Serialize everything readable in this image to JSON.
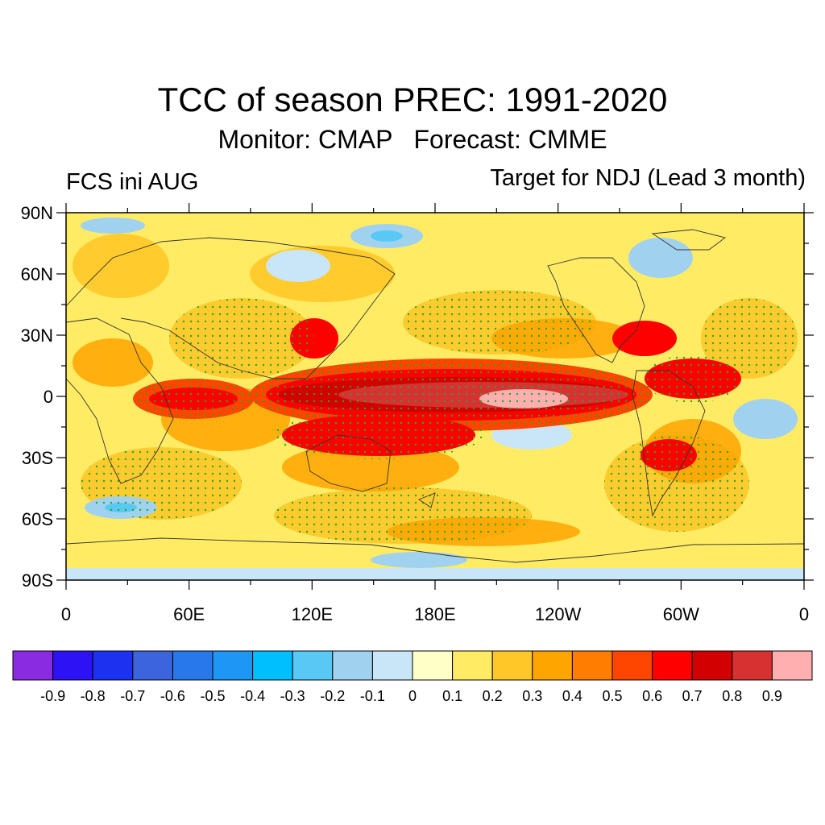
{
  "header": {
    "title": "TCC of season PREC: 1991-2020",
    "subtitle": "Monitor: CMAP   Forecast: CMME",
    "left_label": "FCS ini AUG",
    "right_label": "Target for NDJ (Lead 3 month)"
  },
  "map": {
    "projection": "cylindrical equidistant, 0-360E",
    "lat_range": [
      -90,
      90
    ],
    "lon_range": [
      0,
      360
    ],
    "lat_ticks": [
      {
        "lat": 90,
        "label": "90N"
      },
      {
        "lat": 60,
        "label": "60N"
      },
      {
        "lat": 30,
        "label": "30N"
      },
      {
        "lat": 0,
        "label": "0"
      },
      {
        "lat": -30,
        "label": "30S"
      },
      {
        "lat": -60,
        "label": "60S"
      },
      {
        "lat": -90,
        "label": "90S"
      }
    ],
    "lon_ticks": [
      {
        "lon": 0,
        "label": "0"
      },
      {
        "lon": 60,
        "label": "60E"
      },
      {
        "lon": 120,
        "label": "120E"
      },
      {
        "lon": 180,
        "label": "180E"
      },
      {
        "lon": 240,
        "label": "120W"
      },
      {
        "lon": 300,
        "label": "60W"
      },
      {
        "lon": 360,
        "label": "0"
      }
    ],
    "stippling_color": "#22aa22"
  },
  "colorbar": {
    "colors": [
      "#8a2be2",
      "#2c12f5",
      "#1d32f0",
      "#3c64dc",
      "#2878ea",
      "#1e96f5",
      "#00bfff",
      "#5ac8f5",
      "#a0d2f0",
      "#c8e6f8",
      "#ffffc8",
      "#ffeb64",
      "#ffc828",
      "#ffa500",
      "#ff7d00",
      "#ff4600",
      "#ff0000",
      "#d20000",
      "#d73232",
      "#ffafaf"
    ],
    "labels": [
      "-0.9",
      "-0.8",
      "-0.7",
      "-0.6",
      "-0.5",
      "-0.4",
      "-0.3",
      "-0.2",
      "-0.1",
      "0",
      "0.1",
      "0.2",
      "0.3",
      "0.4",
      "0.5",
      "0.6",
      "0.7",
      "0.8",
      "0.9"
    ]
  }
}
